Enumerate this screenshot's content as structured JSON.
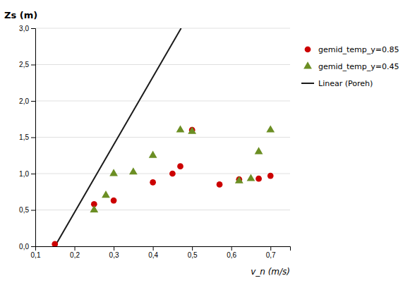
{
  "chart_data": {
    "type": "scatter",
    "xlabel": "v_n (m/s)",
    "ylabel": "Zs (m)",
    "xlim": [
      0.1,
      0.75
    ],
    "ylim": [
      0.0,
      3.0
    ],
    "xticks": [
      {
        "value": 0.1,
        "label": "0,1"
      },
      {
        "value": 0.2,
        "label": "0,2"
      },
      {
        "value": 0.3,
        "label": "0,3"
      },
      {
        "value": 0.4,
        "label": "0,4"
      },
      {
        "value": 0.5,
        "label": "0,5"
      },
      {
        "value": 0.6,
        "label": "0,6"
      },
      {
        "value": 0.7,
        "label": "0,7"
      }
    ],
    "yticks": [
      {
        "value": 0.0,
        "label": "0,0"
      },
      {
        "value": 0.5,
        "label": "0,5"
      },
      {
        "value": 1.0,
        "label": "1,0"
      },
      {
        "value": 1.5,
        "label": "1,5"
      },
      {
        "value": 2.0,
        "label": "2,0"
      },
      {
        "value": 2.5,
        "label": "2,5"
      },
      {
        "value": 3.0,
        "label": "3,0"
      }
    ],
    "grid": "y",
    "legend": "right",
    "series": [
      {
        "name": "gemid_temp_y=0.85",
        "type": "scatter",
        "marker": "circle",
        "color": "#cc0000",
        "x": [
          0.15,
          0.25,
          0.3,
          0.4,
          0.45,
          0.47,
          0.5,
          0.57,
          0.62,
          0.67,
          0.7
        ],
        "values": [
          0.03,
          0.58,
          0.63,
          0.88,
          1.0,
          1.1,
          1.6,
          0.85,
          0.92,
          0.93,
          0.97
        ]
      },
      {
        "name": "gemid_temp_y=0.45",
        "type": "scatter",
        "marker": "triangle",
        "color": "#6b8e23",
        "x": [
          0.25,
          0.28,
          0.3,
          0.35,
          0.4,
          0.47,
          0.5,
          0.62,
          0.65,
          0.67,
          0.7
        ],
        "values": [
          0.5,
          0.7,
          1.0,
          1.02,
          1.25,
          1.6,
          1.58,
          0.9,
          0.93,
          1.3,
          1.6
        ]
      },
      {
        "name": "Linear (Poreh)",
        "type": "line",
        "line_style": "solid",
        "color": "#1a1a1a",
        "x": [
          0.15,
          0.472
        ],
        "values": [
          0.0,
          3.0
        ]
      }
    ]
  }
}
